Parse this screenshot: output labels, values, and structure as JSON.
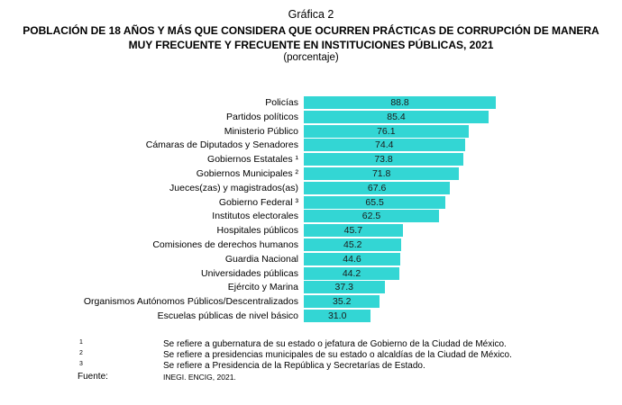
{
  "header": {
    "chart_number": "Gráfica 2",
    "title_line1": "POBLACIÓN DE 18 AÑOS Y MÁS QUE CONSIDERA QUE OCURREN PRÁCTICAS DE CORRUPCIÓN DE MANERA",
    "title_line2": "MUY FRECUENTE Y FRECUENTE EN INSTITUCIONES PÚBLICAS, 2021",
    "unit": "(porcentaje)"
  },
  "colors": {
    "bar": "#33d6d4",
    "text": "#000000"
  },
  "chart_data": {
    "type": "bar",
    "orientation": "horizontal",
    "title": "POBLACIÓN DE 18 AÑOS Y MÁS QUE CONSIDERA QUE OCURREN PRÁCTICAS DE CORRUPCIÓN DE MANERA MUY FRECUENTE Y FRECUENTE EN INSTITUCIONES PÚBLICAS, 2021",
    "subtitle": "(porcentaje)",
    "xlabel": "",
    "ylabel": "",
    "grid": false,
    "legend": null,
    "data_labels": true,
    "xlim": [
      0,
      100
    ],
    "categories": [
      "Policías",
      "Partidos políticos",
      "Ministerio Público",
      "Cámaras de Diputados y Senadores",
      "Gobiernos Estatales ¹",
      "Gobiernos Municipales ²",
      "Jueces(zas) y magistrados(as)",
      "Gobierno Federal ³",
      "Institutos electorales",
      "Hospitales públicos",
      "Comisiones de derechos humanos",
      "Guardia Nacional",
      "Universidades públicas",
      "Ejército y Marina",
      "Organismos Autónomos Públicos/Descentralizados",
      "Escuelas públicas de nivel básico"
    ],
    "values": [
      88.8,
      85.4,
      76.1,
      74.4,
      73.8,
      71.8,
      67.6,
      65.5,
      62.5,
      45.7,
      45.2,
      44.6,
      44.2,
      37.3,
      35.2,
      31.0
    ],
    "value_labels": [
      "88.8",
      "85.4",
      "76.1",
      "74.4",
      "73.8",
      "71.8",
      "67.6",
      "65.5",
      "62.5",
      "45.7",
      "45.2",
      "44.6",
      "44.2",
      "37.3",
      "35.2",
      "31.0"
    ]
  },
  "footnotes": [
    {
      "mark": "1",
      "text": "Se refiere a gubernatura de su estado o jefatura de Gobierno de la Ciudad de México."
    },
    {
      "mark": "2",
      "text": "Se refiere a presidencias municipales de su estado o alcaldías de la Ciudad de México."
    },
    {
      "mark": "3",
      "text": "Se refiere a Presidencia de la República y Secretarías de Estado."
    }
  ],
  "source": {
    "label": "Fuente:",
    "text": "INEGI. ENCIG, 2021."
  }
}
